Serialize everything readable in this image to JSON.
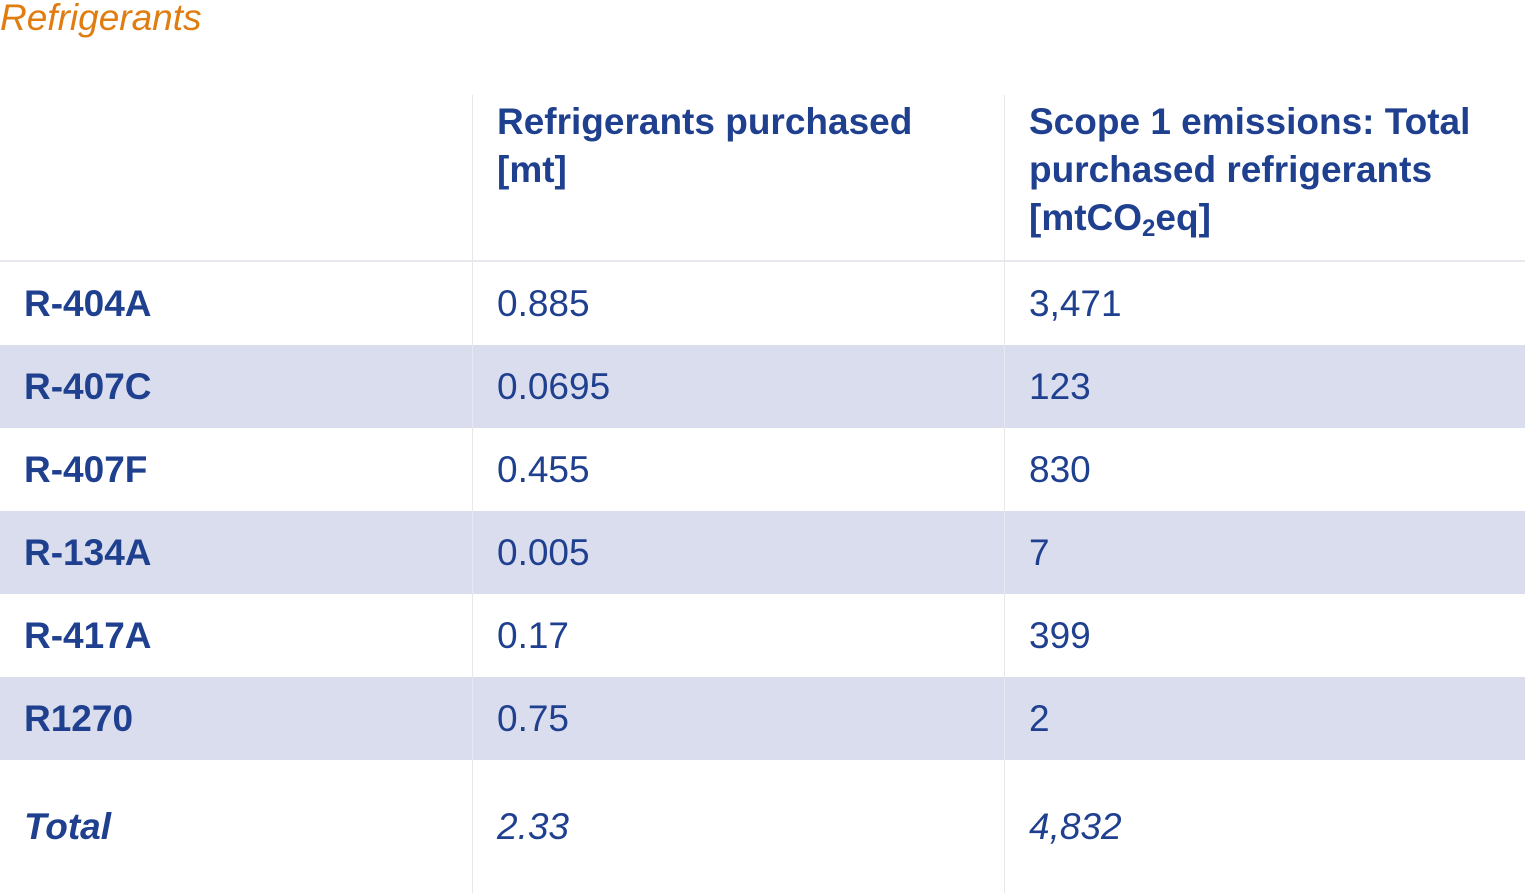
{
  "title": "Refrigerants",
  "header": {
    "col1": "Refrigerants purchased [mt]",
    "col2_line1": "Scope 1 emissions: Total purchased refrigerants [mtCO",
    "col2_sub": "2",
    "col2_end": "eq]"
  },
  "rows": [
    {
      "refrigerant": "R-404A",
      "purchased": "0.885",
      "emissions": "3,471"
    },
    {
      "refrigerant": "R-407C",
      "purchased": "0.0695",
      "emissions": "123"
    },
    {
      "refrigerant": "R-407F",
      "purchased": "0.455",
      "emissions": "830"
    },
    {
      "refrigerant": "R-134A",
      "purchased": "0.005",
      "emissions": "7"
    },
    {
      "refrigerant": "R-417A",
      "purchased": "0.17",
      "emissions": "399"
    },
    {
      "refrigerant": "R1270",
      "purchased": "0.75",
      "emissions": "2"
    }
  ],
  "total": {
    "label": "Total",
    "purchased": "2.33",
    "emissions": "4,832"
  },
  "colors": {
    "title": "#e07d12",
    "text": "#1f3f8f",
    "shaded_row": "#d9ddee"
  }
}
